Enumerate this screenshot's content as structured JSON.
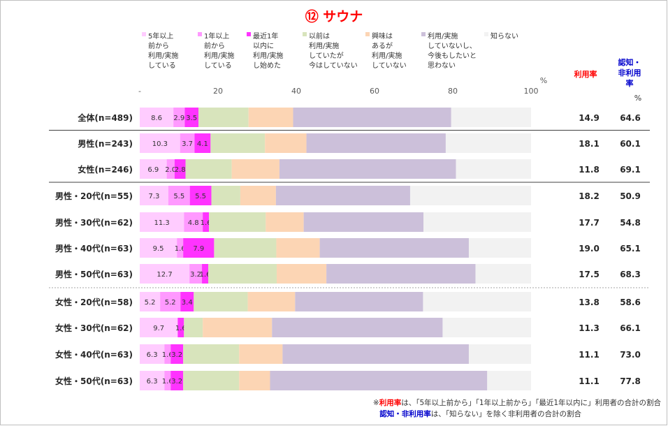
{
  "chart_data": {
    "type": "bar",
    "title": "⑫ サウナ",
    "unit_label": "%",
    "legend": [
      {
        "name": "5年以上\n前から\n利用/実施\nしている",
        "color": "#ffccff"
      },
      {
        "name": "1年以上\n前から\n利用/実施\nしている",
        "color": "#ff99ff"
      },
      {
        "name": "最近1年\n以内に\n利用/実施\nし始めた",
        "color": "#ff33ff"
      },
      {
        "name": "以前は\n利用/実施\nしていたが\n今はしていない",
        "color": "#d8e4bc"
      },
      {
        "name": "興味は\nあるが\n利用/実施\nしていない",
        "color": "#fcd5b4"
      },
      {
        "name": "利用/実施\nしていないし、\n今後もしたいと\n思わない",
        "color": "#ccc0da"
      },
      {
        "name": "知らない",
        "color": "#f2f2f2"
      }
    ],
    "x_ticks": [
      "-",
      "20",
      "40",
      "60",
      "80",
      "100"
    ],
    "xlim": [
      0,
      100
    ],
    "col_headers": {
      "usage": "利用率",
      "aware": "認知・\n非利用\n率",
      "aware_unit": "%"
    },
    "rows": [
      {
        "label": "全体(n=489)",
        "values": [
          8.6,
          2.9,
          3.5,
          12.8,
          11.4,
          40.4,
          20.4
        ],
        "show": [
          "8.6",
          "2.9",
          "3.5"
        ],
        "usage": "14.9",
        "aware": "64.6"
      },
      {
        "label": "男性(n=243)",
        "values": [
          10.3,
          3.7,
          4.1,
          13.9,
          10.6,
          35.6,
          21.8
        ],
        "show": [
          "10.3",
          "3.7",
          "4.1"
        ],
        "usage": "18.1",
        "aware": "60.1"
      },
      {
        "label": "女性(n=246)",
        "values": [
          6.9,
          2.0,
          2.8,
          11.8,
          12.2,
          45.1,
          19.2
        ],
        "show": [
          "6.9",
          "2.0",
          "2.8"
        ],
        "usage": "11.8",
        "aware": "69.1"
      },
      {
        "label": "男性・20代(n=55)",
        "values": [
          7.3,
          5.5,
          5.5,
          7.4,
          9.1,
          34.3,
          30.9
        ],
        "show": [
          "7.3",
          "5.5",
          "5.5"
        ],
        "usage": "18.2",
        "aware": "50.9"
      },
      {
        "label": "男性・30代(n=62)",
        "values": [
          11.3,
          4.8,
          1.6,
          14.5,
          9.7,
          30.6,
          27.5
        ],
        "show": [
          "11.3",
          "4.8",
          "1.6"
        ],
        "usage": "17.7",
        "aware": "54.8"
      },
      {
        "label": "男性・40代(n=63)",
        "values": [
          9.5,
          1.6,
          7.9,
          15.9,
          11.1,
          38.1,
          15.9
        ],
        "show": [
          "9.5",
          "1.6",
          "7.9"
        ],
        "usage": "19.0",
        "aware": "65.1"
      },
      {
        "label": "男性・50代(n=63)",
        "values": [
          12.7,
          3.2,
          1.6,
          17.5,
          12.7,
          38.1,
          14.2
        ],
        "show": [
          "12.7",
          "3.2",
          "1.6"
        ],
        "usage": "17.5",
        "aware": "68.3"
      },
      {
        "label": "女性・20代(n=58)",
        "values": [
          5.2,
          5.2,
          3.4,
          13.8,
          12.1,
          32.7,
          27.6
        ],
        "show": [
          "5.2",
          "5.2",
          "3.4"
        ],
        "usage": "13.8",
        "aware": "58.6"
      },
      {
        "label": "女性・30代(n=62)",
        "values": [
          9.7,
          0.0,
          1.6,
          4.8,
          17.7,
          43.6,
          22.6
        ],
        "show": [
          "9.7",
          "",
          "1.6"
        ],
        "usage": "11.3",
        "aware": "66.1"
      },
      {
        "label": "女性・40代(n=63)",
        "values": [
          6.3,
          1.6,
          3.2,
          14.3,
          11.1,
          47.6,
          15.9
        ],
        "show": [
          "6.3",
          "1.6",
          "3.2"
        ],
        "usage": "11.1",
        "aware": "73.0"
      },
      {
        "label": "女性・50代(n=63)",
        "values": [
          6.3,
          1.6,
          3.2,
          14.3,
          7.9,
          55.5,
          11.2
        ],
        "show": [
          "6.3",
          "1.6",
          "3.2"
        ],
        "usage": "11.1",
        "aware": "77.8"
      }
    ],
    "dividers": [
      {
        "after": 0,
        "style": "solid"
      },
      {
        "after": 2,
        "style": "solid"
      },
      {
        "after": 6,
        "style": "dotted"
      }
    ],
    "footnotes": [
      {
        "emph": "利用率",
        "emph_color": "#ff0000",
        "text": "は、「5年以上前から」「1年以上前から」「最近1年以内に」利用者の合計の割合"
      },
      {
        "emph": "認知・非利用率",
        "emph_color": "#0000cc",
        "text": "は、「知らない」を除く非利用者の合計の割合"
      }
    ]
  }
}
